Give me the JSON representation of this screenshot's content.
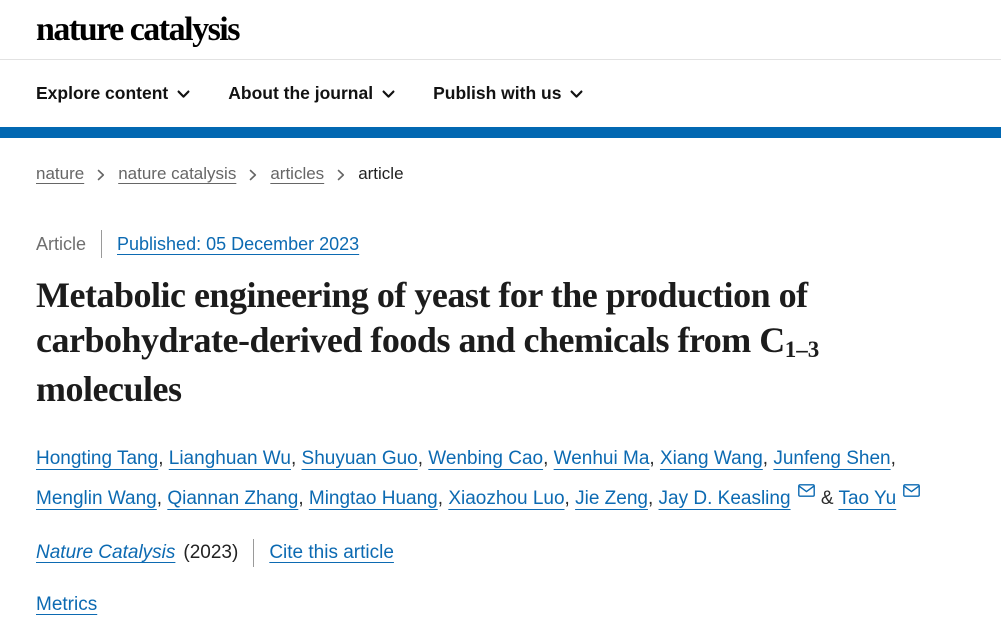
{
  "brand": {
    "logo": "nature catalysis"
  },
  "nav": {
    "items": [
      {
        "label": "Explore content"
      },
      {
        "label": "About the journal"
      },
      {
        "label": "Publish with us"
      }
    ]
  },
  "breadcrumb": {
    "items": [
      {
        "label": "nature"
      },
      {
        "label": "nature catalysis"
      },
      {
        "label": "articles"
      },
      {
        "label": "article"
      }
    ]
  },
  "article": {
    "type_label": "Article",
    "published_link": "Published: 05 December 2023",
    "title": {
      "line1": "Metabolic engineering of yeast for the production of",
      "line2_pre": "carbohydrate-derived foods and chemicals from C",
      "line2_sub": "1–3",
      "line3": "molecules"
    },
    "authors": [
      {
        "name": "Hongting Tang"
      },
      {
        "name": "Lianghuan Wu"
      },
      {
        "name": "Shuyuan Guo"
      },
      {
        "name": "Wenbing Cao"
      },
      {
        "name": "Wenhui Ma"
      },
      {
        "name": "Xiang Wang"
      },
      {
        "name": "Junfeng Shen"
      },
      {
        "name": "Menglin Wang"
      },
      {
        "name": "Qiannan Zhang"
      },
      {
        "name": "Mingtao Huang"
      },
      {
        "name": "Xiaozhou Luo"
      },
      {
        "name": "Jie Zeng"
      },
      {
        "name": "Jay D. Keasling",
        "email": true
      },
      {
        "name": "Tao Yu",
        "email": true
      }
    ],
    "citation": {
      "journal": "Nature Catalysis",
      "year": "(2023)",
      "cite_link": "Cite this article"
    },
    "metrics_link": "Metrics"
  },
  "colors": {
    "accent_bar": "#0268b2",
    "link": "#0c6ab2"
  }
}
